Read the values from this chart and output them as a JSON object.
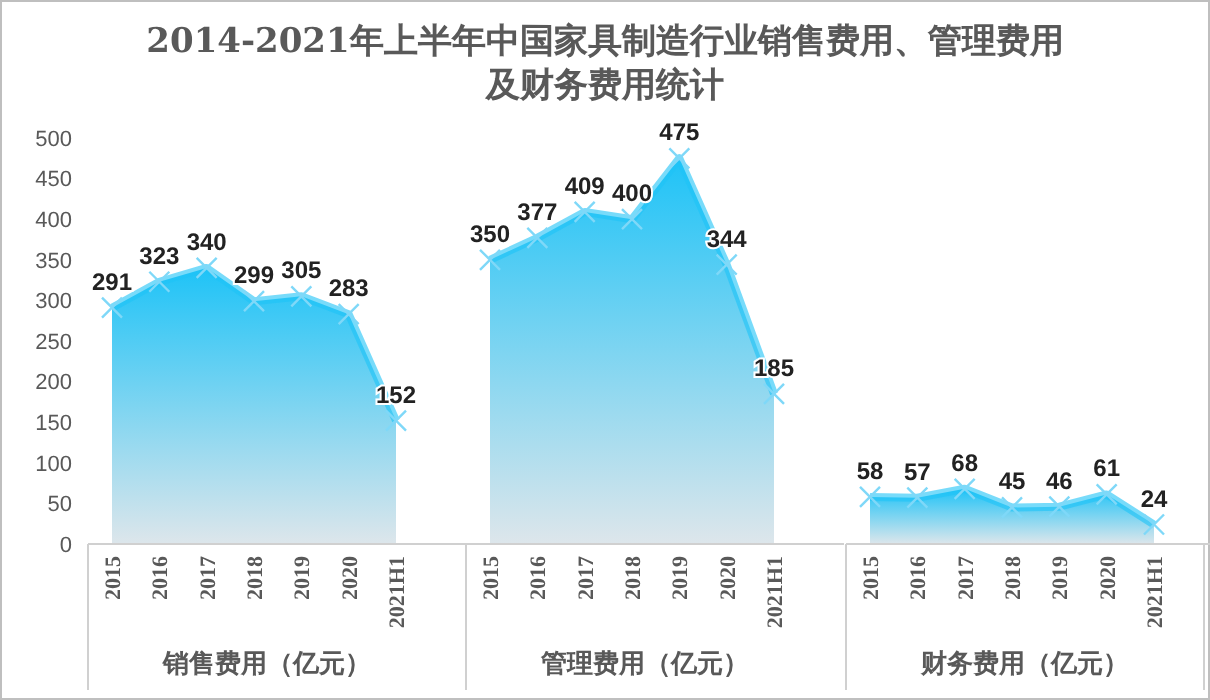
{
  "chart_data": [
    {
      "type": "area",
      "title": "2014-2021年上半年中国家具制造行业销售费用、管理费用及财务费用统计",
      "xlabel": "销售费用（亿元）",
      "categories": [
        "2015",
        "2016",
        "2017",
        "2018",
        "2019",
        "2020",
        "2021H1"
      ],
      "series": [
        {
          "color": "#1ec3f7",
          "values": [
            291,
            323,
            340,
            299,
            305,
            283,
            152
          ]
        }
      ],
      "ylim": [
        0,
        500
      ],
      "yticks": [
        0,
        50,
        100,
        150,
        200,
        250,
        300,
        350,
        400,
        450,
        500
      ],
      "data_labels": true,
      "marker": "cross",
      "grid": false
    },
    {
      "type": "area",
      "xlabel": "管理费用（亿元）",
      "categories": [
        "2015",
        "2016",
        "2017",
        "2018",
        "2019",
        "2020",
        "2021H1"
      ],
      "series": [
        {
          "color": "#1ec3f7",
          "values": [
            350,
            377,
            409,
            400,
            475,
            344,
            185
          ]
        }
      ],
      "ylim": [
        0,
        500
      ],
      "tick_labels": "x",
      "data_labels": true,
      "marker": "cross",
      "grid": false
    },
    {
      "type": "area",
      "xlabel": "财务费用（亿元）",
      "categories": [
        "2015",
        "2016",
        "2017",
        "2018",
        "2019",
        "2020",
        "2021H1"
      ],
      "series": [
        {
          "color": "#1ec3f7",
          "values": [
            58,
            57,
            68,
            45,
            46,
            61,
            24
          ]
        }
      ],
      "ylim": [
        0,
        500
      ],
      "tick_labels": "x",
      "data_labels": true,
      "marker": "cross",
      "grid": false
    }
  ]
}
